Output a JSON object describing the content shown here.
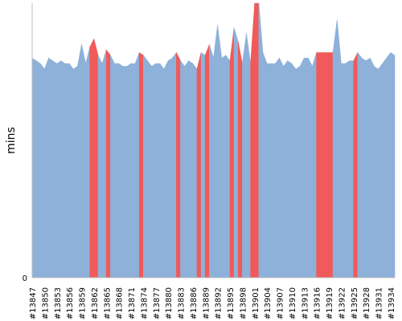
{
  "chart_data": {
    "type": "area",
    "ylabel": "mins",
    "ylim": [
      0,
      100
    ],
    "yticks": [
      0
    ],
    "grid": false,
    "colors": {
      "base": "#8eb1da",
      "highlight": "#f05a5a",
      "axis": "#bdbdbd"
    },
    "builds": [
      13847,
      13848,
      13849,
      13850,
      13851,
      13852,
      13853,
      13854,
      13855,
      13856,
      13857,
      13858,
      13859,
      13860,
      13861,
      13862,
      13863,
      13864,
      13865,
      13866,
      13867,
      13868,
      13869,
      13870,
      13871,
      13872,
      13873,
      13874,
      13875,
      13876,
      13877,
      13878,
      13879,
      13880,
      13881,
      13882,
      13883,
      13884,
      13885,
      13886,
      13887,
      13888,
      13889,
      13890,
      13891,
      13892,
      13893,
      13894,
      13895,
      13896,
      13897,
      13898,
      13899,
      13900,
      13901,
      13902,
      13903,
      13904,
      13905,
      13906,
      13907,
      13908,
      13909,
      13910,
      13911,
      13912,
      13913,
      13914,
      13915,
      13916,
      13917,
      13918,
      13919,
      13920,
      13921,
      13922,
      13923,
      13924,
      13925,
      13926,
      13927,
      13928,
      13929,
      13930,
      13931,
      13932,
      13933,
      13934,
      13935
    ],
    "tick_labels": [
      "#13847",
      "#13850",
      "#13853",
      "#13856",
      "#13859",
      "#13862",
      "#13865",
      "#13868",
      "#13871",
      "#13874",
      "#13877",
      "#13880",
      "#13883",
      "#13886",
      "#13889",
      "#13892",
      "#13895",
      "#13898",
      "#13901",
      "#13904",
      "#13907",
      "#13910",
      "#13913",
      "#13916",
      "#13919",
      "#13922",
      "#13925",
      "#13928",
      "#13931",
      "#13934"
    ],
    "values": [
      80,
      79,
      78,
      76,
      80,
      79,
      78,
      79,
      78,
      78,
      76,
      77,
      85,
      78,
      84,
      87,
      81,
      78,
      83,
      81,
      78,
      78,
      77,
      77,
      78,
      78,
      82,
      81,
      79,
      77,
      78,
      78,
      76,
      79,
      80,
      82,
      79,
      77,
      79,
      78,
      76,
      82,
      81,
      85,
      80,
      92,
      80,
      81,
      79,
      91,
      86,
      78,
      89,
      78,
      100,
      100,
      82,
      78,
      78,
      78,
      80,
      77,
      79,
      78,
      76,
      77,
      80,
      80,
      77,
      82,
      82,
      82,
      82,
      82,
      94,
      78,
      78,
      79,
      79,
      82,
      80,
      79,
      80,
      77,
      76,
      78,
      80,
      82,
      81
    ],
    "failed": [
      0,
      0,
      0,
      0,
      0,
      0,
      0,
      0,
      0,
      0,
      0,
      0,
      0,
      0,
      1,
      1,
      0,
      0,
      1,
      0,
      0,
      0,
      0,
      0,
      0,
      0,
      1,
      0,
      0,
      0,
      0,
      0,
      0,
      0,
      0,
      1,
      0,
      0,
      0,
      0,
      1,
      0,
      1,
      0,
      0,
      0,
      0,
      0,
      1,
      0,
      1,
      0,
      0,
      1,
      1,
      0,
      0,
      0,
      0,
      0,
      0,
      0,
      0,
      0,
      0,
      0,
      0,
      0,
      0,
      1,
      1,
      1,
      1,
      0,
      0,
      0,
      0,
      0,
      1,
      0,
      0,
      0,
      0,
      0,
      0,
      0,
      0,
      0,
      1
    ]
  }
}
